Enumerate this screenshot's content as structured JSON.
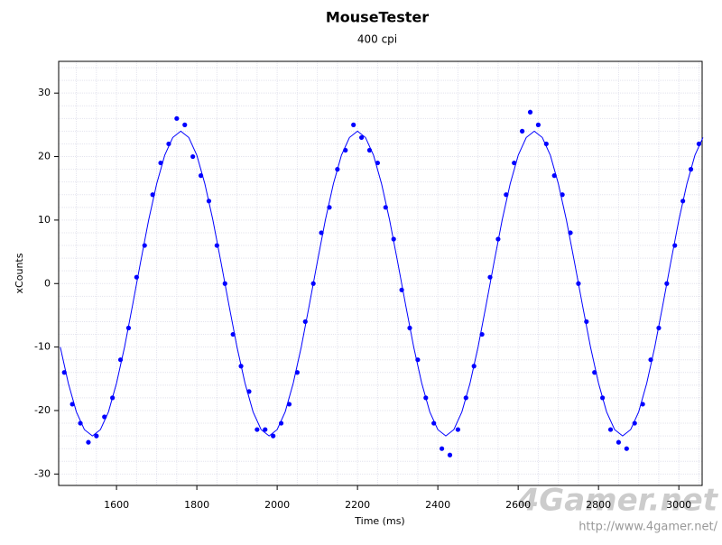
{
  "chart_data": {
    "type": "scatter",
    "title": "MouseTester",
    "subtitle": "400 cpi",
    "x_label": "Time (ms)",
    "y_label": "xCounts",
    "xlim": [
      1456,
      3058
    ],
    "ylim": [
      -31.8,
      35
    ],
    "xticks": [
      1600,
      1800,
      2000,
      2200,
      2400,
      2600,
      2800,
      3000
    ],
    "yticks": [
      -30,
      -20,
      -10,
      0,
      10,
      20,
      30
    ],
    "grid": true,
    "series": [
      {
        "type": "scatter",
        "color": "#0000ff",
        "x": [
          1470,
          1490,
          1510,
          1530,
          1550,
          1570,
          1590,
          1610,
          1630,
          1650,
          1670,
          1690,
          1710,
          1730,
          1750,
          1770,
          1790,
          1810,
          1830,
          1850,
          1870,
          1890,
          1910,
          1930,
          1950,
          1970,
          1990,
          2010,
          2030,
          2050,
          2070,
          2090,
          2110,
          2130,
          2150,
          2170,
          2190,
          2210,
          2230,
          2250,
          2270,
          2290,
          2310,
          2330,
          2350,
          2370,
          2390,
          2410,
          2430,
          2450,
          2470,
          2490,
          2510,
          2530,
          2550,
          2570,
          2590,
          2610,
          2630,
          2650,
          2670,
          2690,
          2710,
          2730,
          2750,
          2770,
          2790,
          2810,
          2830,
          2850,
          2870,
          2890,
          2910,
          2930,
          2950,
          2970,
          2990,
          3010,
          3030,
          3050
        ],
        "values": [
          -14,
          -19,
          -22,
          -25,
          -24,
          -21,
          -18,
          -12,
          -7,
          1,
          6,
          14,
          19,
          22,
          26,
          25,
          20,
          17,
          13,
          6,
          0,
          -8,
          -13,
          -17,
          -23,
          -23,
          -24,
          -22,
          -19,
          -14,
          -6,
          0,
          8,
          12,
          18,
          21,
          25,
          23,
          21,
          19,
          12,
          7,
          -1,
          -7,
          -12,
          -18,
          -22,
          -26,
          -27,
          -23,
          -18,
          -13,
          -8,
          1,
          7,
          14,
          19,
          24,
          27,
          25,
          22,
          17,
          14,
          8,
          0,
          -6,
          -14,
          -18,
          -23,
          -25,
          -26,
          -22,
          -19,
          -12,
          -7,
          0,
          6,
          13,
          18,
          22
        ]
      },
      {
        "type": "line",
        "color": "#0000ff",
        "x": [
          1460,
          1480,
          1500,
          1520,
          1540,
          1560,
          1580,
          1600,
          1620,
          1640,
          1660,
          1680,
          1700,
          1720,
          1740,
          1760,
          1780,
          1800,
          1820,
          1840,
          1860,
          1880,
          1900,
          1920,
          1940,
          1960,
          1980,
          2000,
          2020,
          2040,
          2060,
          2080,
          2100,
          2120,
          2140,
          2160,
          2180,
          2200,
          2220,
          2240,
          2260,
          2280,
          2300,
          2320,
          2340,
          2360,
          2380,
          2400,
          2420,
          2440,
          2460,
          2480,
          2500,
          2520,
          2540,
          2560,
          2580,
          2600,
          2620,
          2640,
          2660,
          2680,
          2700,
          2720,
          2740,
          2760,
          2780,
          2800,
          2820,
          2840,
          2860,
          2880,
          2900,
          2920,
          2940,
          2960,
          2980,
          3000,
          3020,
          3040,
          3060
        ],
        "values": [
          -10,
          -15.7,
          -20.2,
          -23,
          -24,
          -23,
          -20.2,
          -15.7,
          -10,
          -3.4,
          3.4,
          10,
          15.7,
          20.2,
          23,
          24,
          23,
          20.2,
          15.7,
          10,
          3.4,
          -3.4,
          -10,
          -15.7,
          -20.2,
          -23,
          -24,
          -23,
          -20.2,
          -15.7,
          -10,
          -3.4,
          3.4,
          10,
          15.7,
          20.2,
          23,
          24,
          23,
          20.2,
          15.7,
          10,
          3.4,
          -3.4,
          -10,
          -15.7,
          -20.2,
          -23,
          -24,
          -23,
          -20.2,
          -15.7,
          -10,
          -3.4,
          3.4,
          10,
          15.7,
          20.2,
          23,
          24,
          23,
          20.2,
          15.7,
          10,
          3.4,
          -3.4,
          -10,
          -15.7,
          -20.2,
          -23,
          -24,
          -23,
          -20.2,
          -15.7,
          -10,
          -3.4,
          3.4,
          10,
          15.7,
          20.2,
          23
        ]
      }
    ]
  },
  "watermark": {
    "logo": "4Gamer.net",
    "url": "http://www.4gamer.net/"
  }
}
